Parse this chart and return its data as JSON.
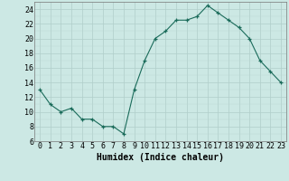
{
  "x": [
    0,
    1,
    2,
    3,
    4,
    5,
    6,
    7,
    8,
    9,
    10,
    11,
    12,
    13,
    14,
    15,
    16,
    17,
    18,
    19,
    20,
    21,
    22,
    23
  ],
  "y": [
    13,
    11,
    10,
    10.5,
    9,
    9,
    8,
    8,
    7,
    13,
    17,
    20,
    21,
    22.5,
    22.5,
    23,
    24.5,
    23.5,
    22.5,
    21.5,
    20,
    17,
    15.5,
    14
  ],
  "line_color": "#1a6b5a",
  "marker": "+",
  "bg_color": "#cce8e4",
  "grid_major_color": "#b0ceca",
  "grid_minor_color": "#bcd8d4",
  "xlabel": "Humidex (Indice chaleur)",
  "xlim": [
    -0.5,
    23.5
  ],
  "ylim": [
    6,
    25
  ],
  "yticks": [
    6,
    8,
    10,
    12,
    14,
    16,
    18,
    20,
    22,
    24
  ],
  "xticks": [
    0,
    1,
    2,
    3,
    4,
    5,
    6,
    7,
    8,
    9,
    10,
    11,
    12,
    13,
    14,
    15,
    16,
    17,
    18,
    19,
    20,
    21,
    22,
    23
  ],
  "font_size": 6,
  "label_fontsize": 7
}
